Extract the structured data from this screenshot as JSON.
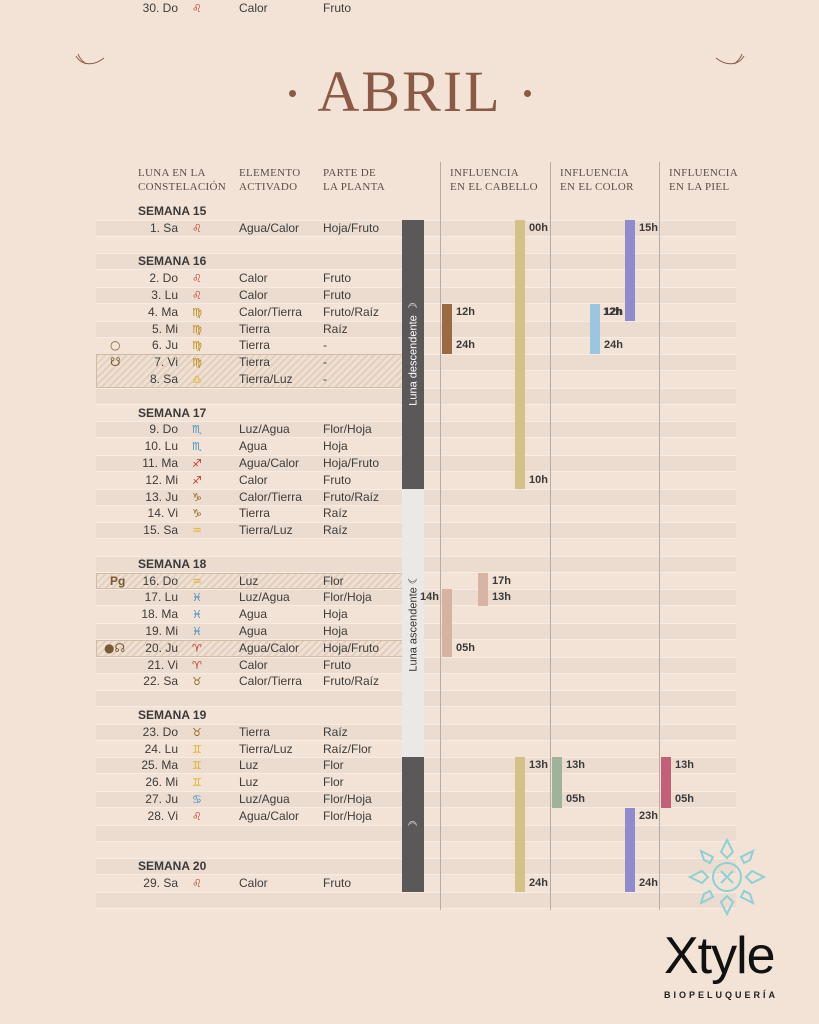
{
  "title": "ABRIL",
  "headers": {
    "luna": "Luna en la\nconstelación",
    "elemento": "Elemento\nactivado",
    "parte": "Parte de\nla planta",
    "cabello": "Influencia\nen el cabello",
    "color": "Influencia\nen el color",
    "piel": "Influencia\nen la piel"
  },
  "weeks": [
    "SEMANA 15",
    "SEMANA 16",
    "SEMANA 17",
    "SEMANA 18",
    "SEMANA 19",
    "SEMANA 20"
  ],
  "days": [
    {
      "day": "1. Sa",
      "sign": "♌",
      "sign_color": "#c0392b",
      "element": "Agua/Calor",
      "part": "Hoja/Fruto"
    },
    {
      "day": "2. Do",
      "sign": "♌",
      "sign_color": "#c0392b",
      "element": "Calor",
      "part": "Fruto"
    },
    {
      "day": "3. Lu",
      "sign": "♌",
      "sign_color": "#c0392b",
      "element": "Calor",
      "part": "Fruto"
    },
    {
      "day": "4. Ma",
      "sign": "♍",
      "sign_color": "#b8860b",
      "element": "Calor/Tierra",
      "part": "Fruto/Raíz"
    },
    {
      "day": "5. Mi",
      "sign": "♍",
      "sign_color": "#b8860b",
      "element": "Tierra",
      "part": "Raíz"
    },
    {
      "day": "6. Ju",
      "sign": "♍",
      "sign_color": "#b8860b",
      "element": "Tierra",
      "part": "-"
    },
    {
      "day": "7. Vi",
      "sign": "♍",
      "sign_color": "#b8860b",
      "element": "Tierra",
      "part": "-"
    },
    {
      "day": "8. Sa",
      "sign": "♎",
      "sign_color": "#e0b020",
      "element": "Tierra/Luz",
      "part": "-"
    },
    {
      "day": "9. Do",
      "sign": "♏",
      "sign_color": "#3a8fc0",
      "element": "Luz/Agua",
      "part": "Flor/Hoja"
    },
    {
      "day": "10. Lu",
      "sign": "♏",
      "sign_color": "#3a8fc0",
      "element": "Agua",
      "part": "Hoja"
    },
    {
      "day": "11. Ma",
      "sign": "♐",
      "sign_color": "#c0392b",
      "element": "Agua/Calor",
      "part": "Hoja/Fruto"
    },
    {
      "day": "12. Mi",
      "sign": "♐",
      "sign_color": "#c0392b",
      "element": "Calor",
      "part": "Fruto"
    },
    {
      "day": "13. Ju",
      "sign": "♑",
      "sign_color": "#8b6914",
      "element": "Calor/Tierra",
      "part": "Fruto/Raíz"
    },
    {
      "day": "14. Vi",
      "sign": "♑",
      "sign_color": "#8b6914",
      "element": "Tierra",
      "part": "Raíz"
    },
    {
      "day": "15. Sa",
      "sign": "♒",
      "sign_color": "#e0b020",
      "element": "Tierra/Luz",
      "part": "Raíz"
    },
    {
      "day": "16. Do",
      "sign": "♒",
      "sign_color": "#e0b020",
      "element": "Luz",
      "part": "Flor"
    },
    {
      "day": "17. Lu",
      "sign": "♓",
      "sign_color": "#3a8fc0",
      "element": "Luz/Agua",
      "part": "Flor/Hoja"
    },
    {
      "day": "18. Ma",
      "sign": "♓",
      "sign_color": "#3a8fc0",
      "element": "Agua",
      "part": "Hoja"
    },
    {
      "day": "19. Mi",
      "sign": "♓",
      "sign_color": "#3a8fc0",
      "element": "Agua",
      "part": "Hoja"
    },
    {
      "day": "20. Ju",
      "sign": "♈",
      "sign_color": "#c0392b",
      "element": "Agua/Calor",
      "part": "Hoja/Fruto"
    },
    {
      "day": "21. Vi",
      "sign": "♈",
      "sign_color": "#c0392b",
      "element": "Calor",
      "part": "Fruto"
    },
    {
      "day": "22. Sa",
      "sign": "♉",
      "sign_color": "#8b6914",
      "element": "Calor/Tierra",
      "part": "Fruto/Raíz"
    },
    {
      "day": "23. Do",
      "sign": "♉",
      "sign_color": "#8b6914",
      "element": "Tierra",
      "part": "Raíz"
    },
    {
      "day": "24. Lu",
      "sign": "♊",
      "sign_color": "#e0b020",
      "element": "Tierra/Luz",
      "part": "Raíz/Flor"
    },
    {
      "day": "25. Ma",
      "sign": "♊",
      "sign_color": "#e0b020",
      "element": "Luz",
      "part": "Flor"
    },
    {
      "day": "26. Mi",
      "sign": "♊",
      "sign_color": "#e0b020",
      "element": "Luz",
      "part": "Flor"
    },
    {
      "day": "27. Ju",
      "sign": "♋",
      "sign_color": "#3a8fc0",
      "element": "Luz/Agua",
      "part": "Flor/Hoja"
    },
    {
      "day": "28. Vi",
      "sign": "♌",
      "sign_color": "#c0392b",
      "element": "Agua/Calor",
      "part": "Flor/Hoja"
    },
    {
      "day": "29. Sa",
      "sign": "♌",
      "sign_color": "#c0392b",
      "element": "Calor",
      "part": "Fruto"
    },
    {
      "day": "30. Do",
      "sign": "♌",
      "sign_color": "#c0392b",
      "element": "Calor",
      "part": "Fruto"
    }
  ],
  "moon": {
    "descending": "Luna descendente ☽",
    "ascending": "Luna ascendente ☾",
    "descending_color": "#5a5858",
    "ascending_color": "#ebe9e8"
  },
  "markers": {
    "pg": "Pg",
    "full_moon": "○",
    "node": "☋",
    "new_node": "●☊"
  },
  "influences": {
    "cabello": [
      {
        "label_start": "00h",
        "label_end": "10h",
        "color": "#d4c185"
      },
      {
        "label_start": "12h",
        "label_end": "24h",
        "color": "#9a6a42"
      },
      {
        "label_start": "17h",
        "label_end": "13h",
        "color": "#d8b4a4"
      },
      {
        "label_start": "14h",
        "label_end": "05h",
        "color": "#d6b2a0"
      },
      {
        "label_start": "13h",
        "label_end": "24h",
        "color": "#d4c185"
      }
    ],
    "color": [
      {
        "label_start": "15h",
        "label_end": "12h",
        "color": "#8e8ccc"
      },
      {
        "label_start": "12h",
        "label_end": "24h",
        "color": "#9cc6e0"
      },
      {
        "label_start": "13h",
        "label_end": "05h",
        "color": "#9eb39a"
      },
      {
        "label_start": "23h",
        "label_end": "24h",
        "color": "#8e8ccc"
      }
    ],
    "piel": [
      {
        "label_start": "13h",
        "label_end": "05h",
        "color": "#c2607a"
      }
    ]
  },
  "brand": {
    "name": "Xtyle",
    "sub": "BIOPELUQUERÍA"
  }
}
